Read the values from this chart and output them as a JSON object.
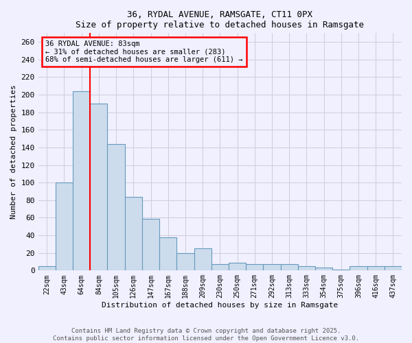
{
  "title1": "36, RYDAL AVENUE, RAMSGATE, CT11 0PX",
  "title2": "Size of property relative to detached houses in Ramsgate",
  "xlabel": "Distribution of detached houses by size in Ramsgate",
  "ylabel": "Number of detached properties",
  "categories": [
    "22sqm",
    "43sqm",
    "64sqm",
    "84sqm",
    "105sqm",
    "126sqm",
    "147sqm",
    "167sqm",
    "188sqm",
    "209sqm",
    "230sqm",
    "250sqm",
    "271sqm",
    "292sqm",
    "313sqm",
    "333sqm",
    "354sqm",
    "375sqm",
    "396sqm",
    "416sqm",
    "437sqm"
  ],
  "values": [
    5,
    100,
    204,
    190,
    144,
    84,
    59,
    38,
    20,
    25,
    7,
    9,
    7,
    7,
    7,
    5,
    3,
    1,
    5,
    5,
    5
  ],
  "bar_color": "#ccdcec",
  "bar_edge_color": "#6699bb",
  "red_line_x": 2.5,
  "annotation_line1": "36 RYDAL AVENUE: 83sqm",
  "annotation_line2": "← 31% of detached houses are smaller (283)",
  "annotation_line3": "68% of semi-detached houses are larger (611) →",
  "ylim": [
    0,
    270
  ],
  "yticks": [
    0,
    20,
    40,
    60,
    80,
    100,
    120,
    140,
    160,
    180,
    200,
    220,
    240,
    260
  ],
  "footnote1": "Contains HM Land Registry data © Crown copyright and database right 2025.",
  "footnote2": "Contains public sector information licensed under the Open Government Licence v3.0.",
  "background_color": "#f0f0ff",
  "grid_color": "#ccccdd"
}
